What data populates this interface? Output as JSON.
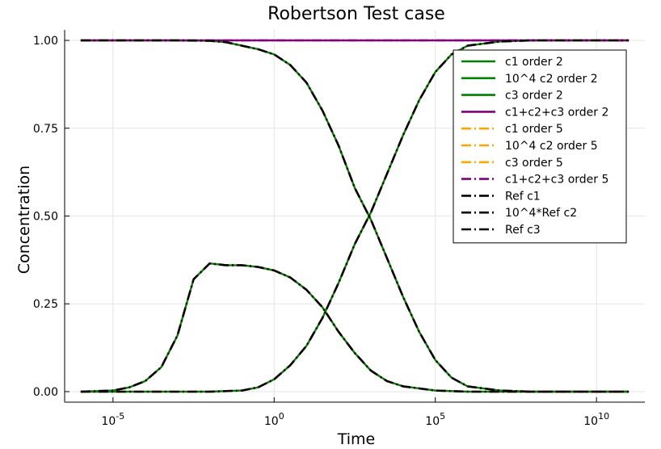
{
  "chart_data": {
    "type": "line",
    "title": "Robertson Test case",
    "xlabel": "Time",
    "ylabel": "Concentration",
    "xscale": "log10",
    "xlim": [
      -6.5,
      11.5
    ],
    "ylim": [
      -0.03,
      1.03
    ],
    "x_ticks": [
      {
        "exp": -5,
        "base": "10",
        "sup": "-5"
      },
      {
        "exp": 0,
        "base": "10",
        "sup": "0"
      },
      {
        "exp": 5,
        "base": "10",
        "sup": "5"
      },
      {
        "exp": 10,
        "base": "10",
        "sup": "10"
      }
    ],
    "y_ticks": [
      0.0,
      0.25,
      0.5,
      0.75,
      1.0
    ],
    "y_tick_labels": [
      "0.00",
      "0.25",
      "0.50",
      "0.75",
      "1.00"
    ],
    "grid": true,
    "legend_position": "top-right",
    "series": [
      {
        "name": "c1 order 2",
        "color": "#008000",
        "style": "solid",
        "curve": "c1"
      },
      {
        "name": "10^4 c2 order 2",
        "color": "#008000",
        "style": "solid",
        "curve": "c2"
      },
      {
        "name": "c3 order 2",
        "color": "#008000",
        "style": "solid",
        "curve": "c3"
      },
      {
        "name": "c1+c2+c3 order 2",
        "color": "#800080",
        "style": "solid",
        "curve": "sum"
      },
      {
        "name": "c1 order 5",
        "color": "#ffa500",
        "style": "dashdot",
        "curve": "c1"
      },
      {
        "name": "10^4 c2 order 5",
        "color": "#ffa500",
        "style": "dashdot",
        "curve": "c2"
      },
      {
        "name": "c3 order 5",
        "color": "#ffa500",
        "style": "dashdot",
        "curve": "c3"
      },
      {
        "name": "c1+c2+c3 order 5",
        "color": "#800080",
        "style": "dashdot",
        "curve": "sum"
      },
      {
        "name": "Ref c1",
        "color": "#000000",
        "style": "dashdot",
        "curve": "c1"
      },
      {
        "name": "10^4*Ref c2",
        "color": "#000000",
        "style": "dashdot",
        "curve": "c2"
      },
      {
        "name": "Ref c3",
        "color": "#000000",
        "style": "dashdot",
        "curve": "c3"
      }
    ],
    "curves": {
      "c1": {
        "log10_time": [
          -6,
          -4,
          -3,
          -2,
          -1.5,
          -1,
          -0.5,
          0,
          0.5,
          1,
          1.5,
          2,
          2.5,
          3,
          3.5,
          4,
          4.5,
          5,
          5.5,
          6,
          7,
          8,
          11
        ],
        "values": [
          1.0,
          1.0,
          1.0,
          0.999,
          0.995,
          0.985,
          0.975,
          0.96,
          0.93,
          0.88,
          0.8,
          0.7,
          0.58,
          0.49,
          0.38,
          0.27,
          0.17,
          0.09,
          0.04,
          0.015,
          0.003,
          0.0,
          0.0
        ]
      },
      "c2": {
        "log10_time": [
          -6,
          -5,
          -4.5,
          -4,
          -3.5,
          -3,
          -2.5,
          -2,
          -1.5,
          -1,
          -0.5,
          0,
          0.5,
          1,
          1.5,
          2,
          2.5,
          3,
          3.5,
          4,
          5,
          6,
          11
        ],
        "values": [
          0.0,
          0.003,
          0.012,
          0.03,
          0.07,
          0.16,
          0.32,
          0.365,
          0.36,
          0.36,
          0.355,
          0.345,
          0.325,
          0.29,
          0.24,
          0.17,
          0.11,
          0.06,
          0.03,
          0.015,
          0.003,
          0.0,
          0.0
        ]
      },
      "c3": {
        "log10_time": [
          -6,
          -3,
          -2,
          -1,
          -0.5,
          0,
          0.5,
          1,
          1.5,
          2,
          2.5,
          3,
          3.5,
          4,
          4.5,
          5,
          5.5,
          6,
          7,
          8,
          11
        ],
        "values": [
          0.0,
          0.0,
          0.0,
          0.003,
          0.012,
          0.035,
          0.075,
          0.13,
          0.21,
          0.31,
          0.42,
          0.51,
          0.62,
          0.73,
          0.83,
          0.91,
          0.96,
          0.985,
          0.997,
          1.0,
          1.0
        ]
      },
      "sum": {
        "log10_time": [
          -6,
          11
        ],
        "values": [
          1.0,
          1.0
        ]
      }
    }
  }
}
